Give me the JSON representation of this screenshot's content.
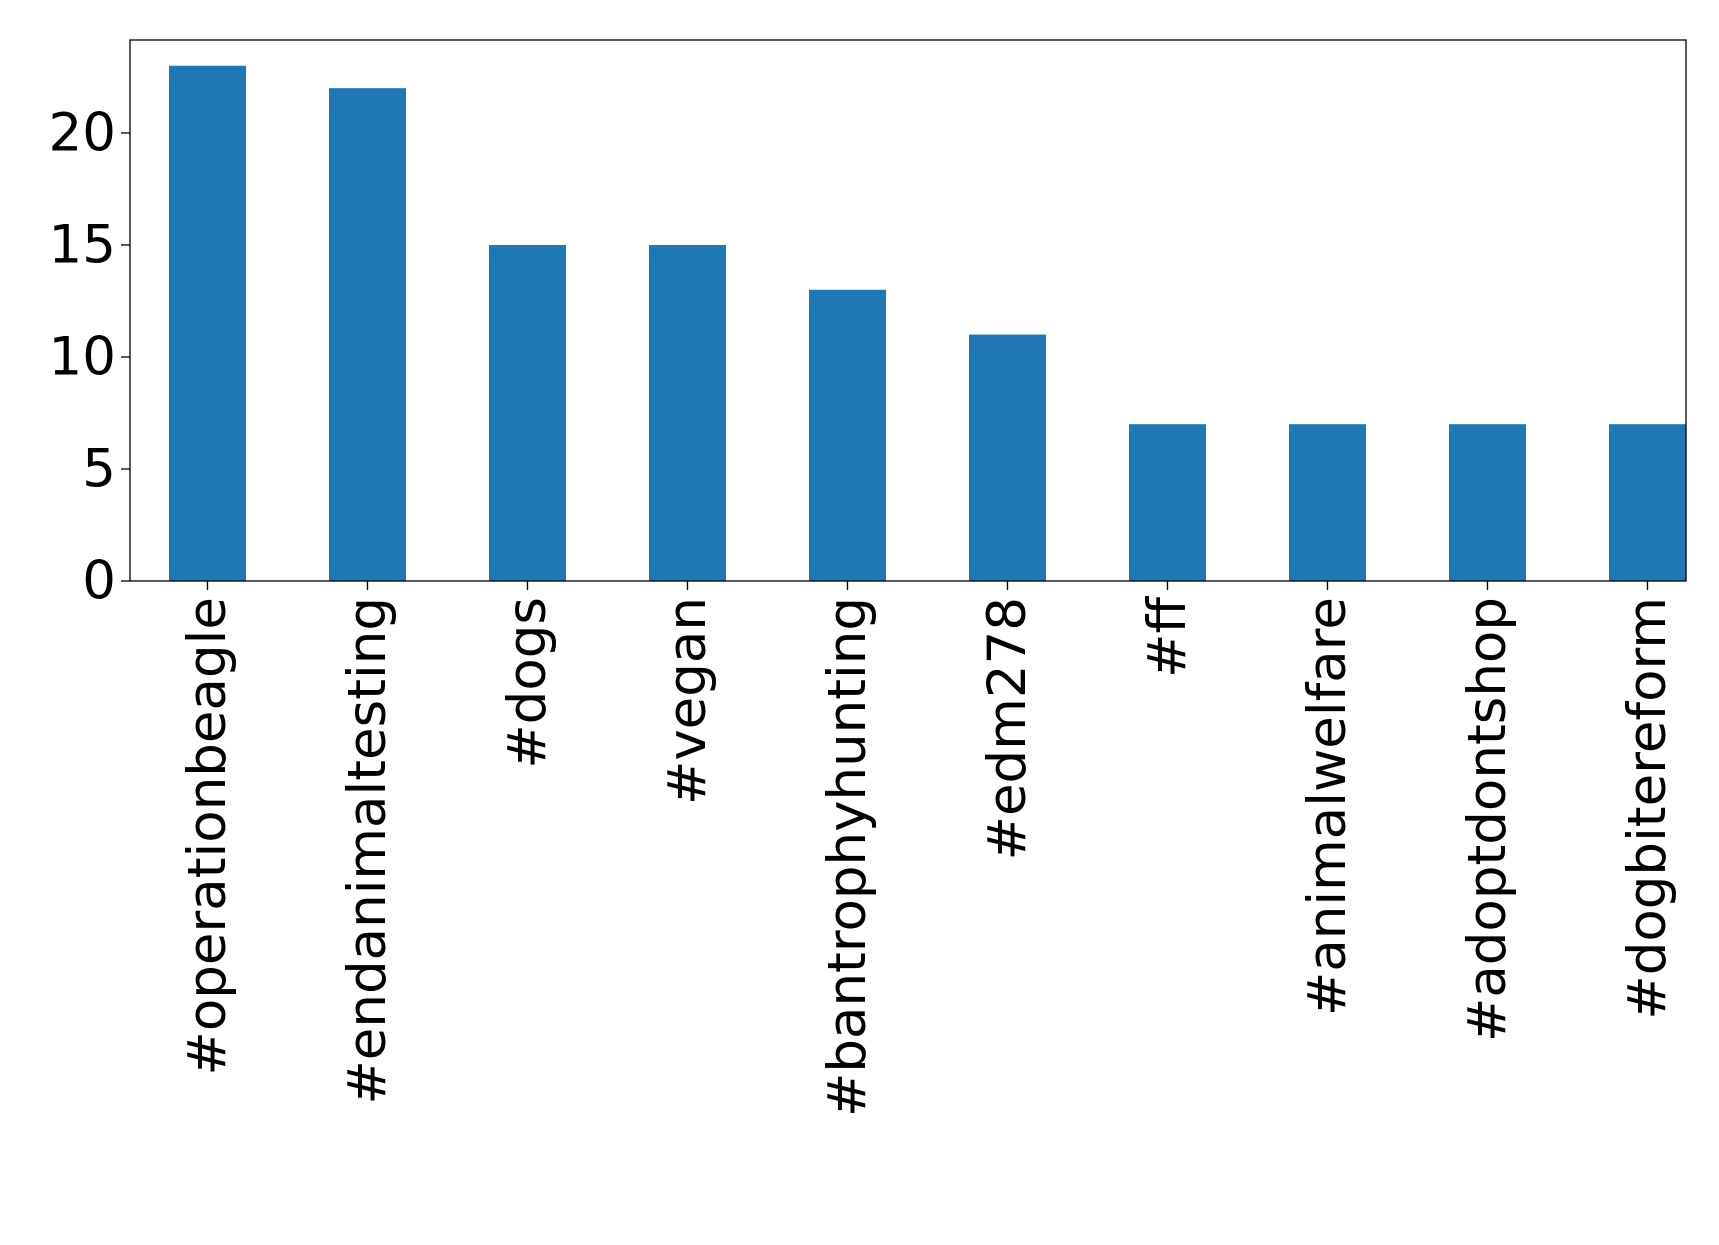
{
  "chart_data": {
    "type": "bar",
    "title": "",
    "xlabel": "",
    "ylabel": "",
    "categories": [
      "#operationbeagle",
      "#endanimaltesting",
      "#dogs",
      "#vegan",
      "#bantrophyhunting",
      "#edm278",
      "#ff",
      "#animalwelfare",
      "#adoptdontshop",
      "#dogbitereform"
    ],
    "values": [
      23,
      22,
      15,
      15,
      13,
      11,
      7,
      7,
      7,
      7
    ],
    "ylim": [
      0,
      24.15
    ],
    "yticks": [
      0,
      5,
      10,
      15,
      20
    ],
    "bar_color": "#1f77b4",
    "grid": false,
    "legend": "none"
  }
}
